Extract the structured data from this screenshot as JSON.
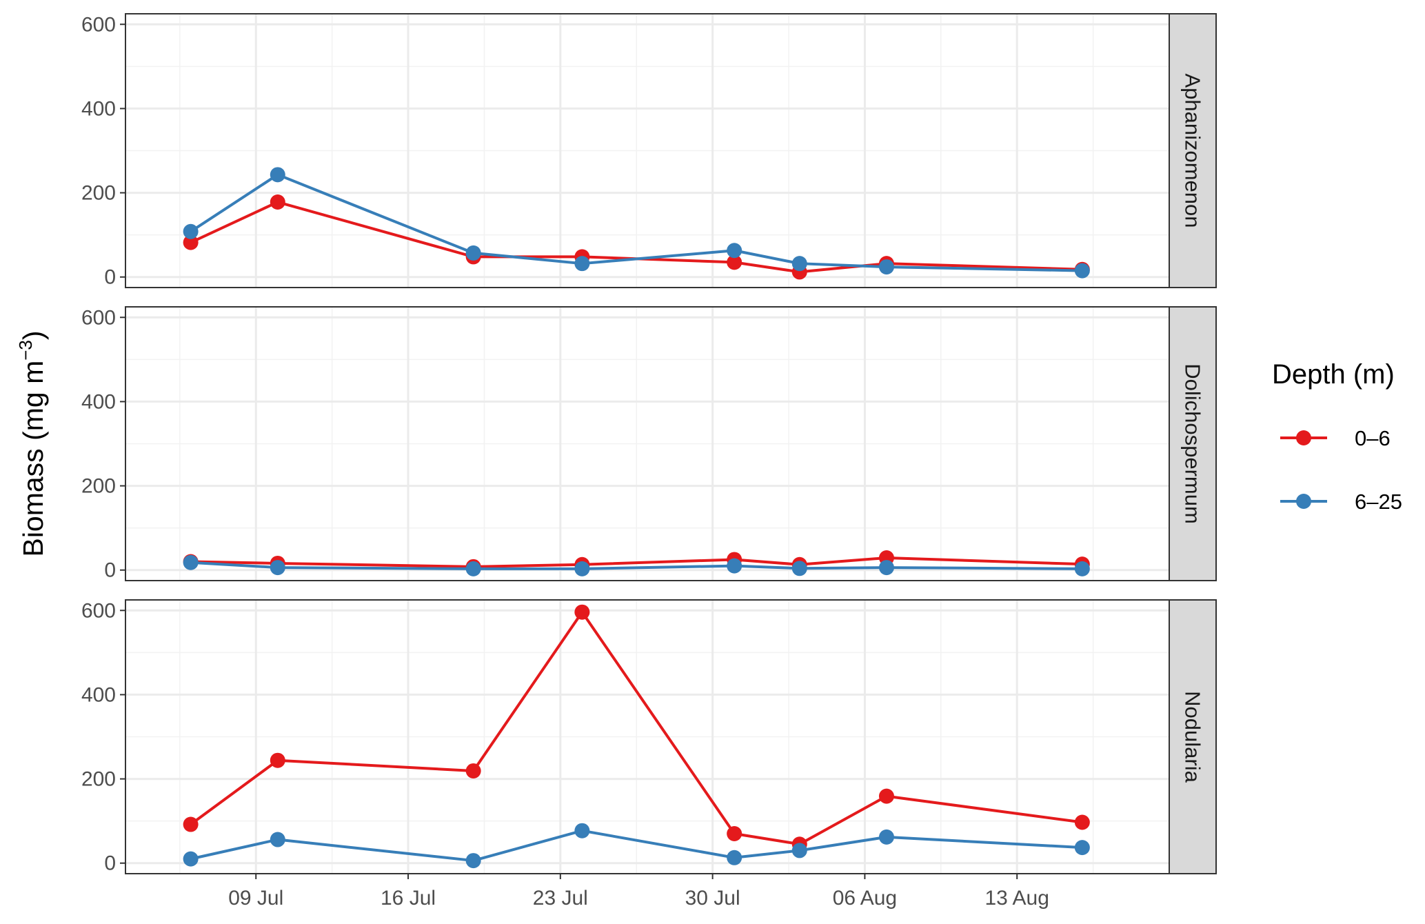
{
  "chart_data": {
    "type": "line",
    "ylabel": "Biomass (mg m",
    "ylabel_superscript": "−3",
    "ylabel_close": ")",
    "ylim": [
      -25,
      625
    ],
    "yticks": [
      "0",
      "200",
      "400",
      "600"
    ],
    "ytick_values": [
      0,
      200,
      400,
      600
    ],
    "xticks": [
      "09 Jul",
      "16 Jul",
      "23 Jul",
      "30 Jul",
      "06 Aug",
      "13 Aug"
    ],
    "xtick_dates": [
      "2019-07-09",
      "2019-07-16",
      "2019-07-23",
      "2019-07-30",
      "2019-08-06",
      "2019-08-13"
    ],
    "xlim": [
      "2019-07-03",
      "2019-08-20"
    ],
    "x": [
      "2019-07-06",
      "2019-07-10",
      "2019-07-19",
      "2019-07-24",
      "2019-07-31",
      "2019-08-03",
      "2019-08-07",
      "2019-08-16"
    ],
    "grid": true,
    "legend": {
      "title": "Depth (m)",
      "position": "right",
      "entries": [
        "0–6",
        "6–25"
      ]
    },
    "colors": {
      "0–6": "#e41a1c",
      "6–25": "#377eb8"
    },
    "panels": [
      {
        "label": "Aphanizomenon",
        "series": [
          {
            "name": "0–6",
            "values": [
              82,
              178,
              48,
              48,
              35,
              12,
              32,
              18
            ]
          },
          {
            "name": "6–25",
            "values": [
              108,
              243,
              57,
              32,
              63,
              32,
              24,
              15
            ]
          }
        ]
      },
      {
        "label": "Dolichospermum",
        "series": [
          {
            "name": "0–6",
            "values": [
              20,
              16,
              8,
              13,
              25,
              13,
              29,
              14
            ]
          },
          {
            "name": "6–25",
            "values": [
              18,
              6,
              3,
              3,
              10,
              4,
              6,
              3
            ]
          }
        ]
      },
      {
        "label": "Nodularia",
        "series": [
          {
            "name": "0–6",
            "values": [
              92,
              244,
              219,
              596,
              70,
              45,
              159,
              97
            ]
          },
          {
            "name": "6–25",
            "values": [
              10,
              56,
              6,
              77,
              13,
              30,
              62,
              37
            ]
          }
        ]
      }
    ]
  }
}
